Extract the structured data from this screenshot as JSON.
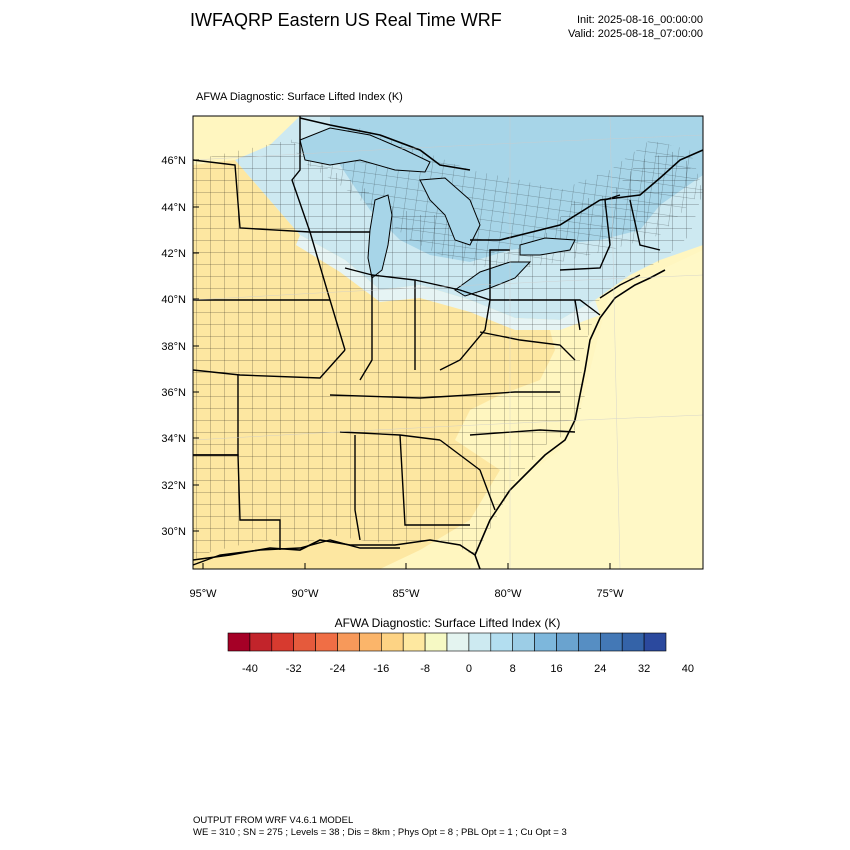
{
  "header": {
    "title": "IWFAQRP Eastern US Real Time WRF",
    "init": "Init: 2025-08-16_00:00:00",
    "valid": "Valid: 2025-08-18_07:00:00"
  },
  "plot": {
    "title": "AFWA Diagnostic: Surface Lifted Index   (K)",
    "lat_labels": [
      "46°N",
      "44°N",
      "42°N",
      "40°N",
      "38°N",
      "36°N",
      "34°N",
      "32°N",
      "30°N"
    ],
    "lon_labels": [
      "95°W",
      "90°W",
      "85°W",
      "80°W",
      "75°W"
    ]
  },
  "colorbar": {
    "title": "AFWA Diagnostic: Surface Lifted Index  (K)",
    "tick_labels": [
      "-40",
      "-32",
      "-24",
      "-16",
      "-8",
      "0",
      "8",
      "16",
      "24",
      "32",
      "40"
    ],
    "colors": [
      "#a50026",
      "#c2242b",
      "#d73a2f",
      "#e55a3c",
      "#f06e45",
      "#f7995a",
      "#fbb56a",
      "#fdd384",
      "#fee8a0",
      "#f6f9c4",
      "#e4f4f0",
      "#cdeaf1",
      "#b3def0",
      "#9ccde6",
      "#7db7dc",
      "#6aa3cf",
      "#568ec3",
      "#4378b6",
      "#3463a8",
      "#2b499e"
    ]
  },
  "field_colors": {
    "slightly_negative": "#fde7a1",
    "near_zero": "#fff6c0",
    "ocean_near_zero": "#fff8c6",
    "slightly_positive": "#e6f4f4",
    "positive": "#cde9f1",
    "positive_high": "#a7d5e8"
  },
  "footer": {
    "line1": "OUTPUT FROM WRF V4.6.1 MODEL",
    "line2": "WE = 310 ; SN = 275 ; Levels = 38 ; Dis = 8km ; Phys Opt = 8 ; PBL Opt = 1 ; Cu Opt = 3"
  }
}
